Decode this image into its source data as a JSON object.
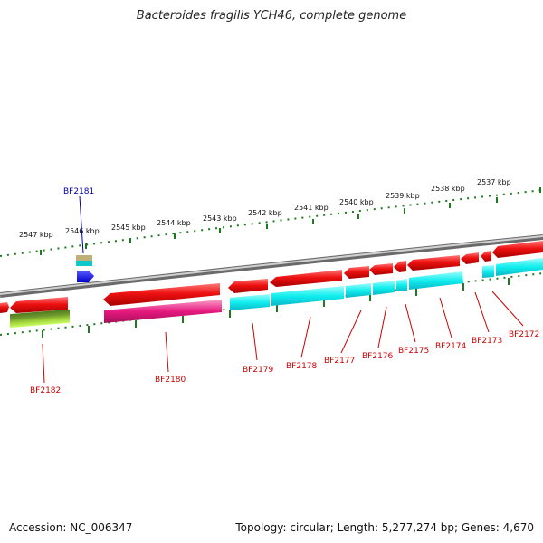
{
  "title": "Bacteroides fragilis YCH46, complete genome",
  "footer": {
    "accession": "Accession: NC_006347",
    "summary": "Topology: circular; Length: 5,277,274 bp; Genes: 4,670"
  },
  "colors": {
    "forward": "#ee1111",
    "cyan": "#11eeee",
    "magenta": "#e6197f",
    "ticks": "#1f7a1f",
    "labels": "#cc0000",
    "highlight_label": "#0000aa",
    "backbone": "#8a8a8a"
  },
  "scale_labels": [
    "2547 kbp",
    "2546 kbp",
    "2545 kbp",
    "2544 kbp",
    "2543 kbp",
    "2542 kbp",
    "2541 kbp",
    "2540 kbp",
    "2539 kbp",
    "2538 kbp",
    "2537 kbp"
  ],
  "gene_labels": {
    "bf2181": "BF2181",
    "bf2182": "BF2182",
    "bf2180": "BF2180",
    "bf2179": "BF2179",
    "bf2178": "BF2178",
    "bf2177": "BF2177",
    "bf2176": "BF2176",
    "bf2175": "BF2175",
    "bf2174": "BF2174",
    "bf2173": "BF2173",
    "bf2172": "BF2172"
  }
}
